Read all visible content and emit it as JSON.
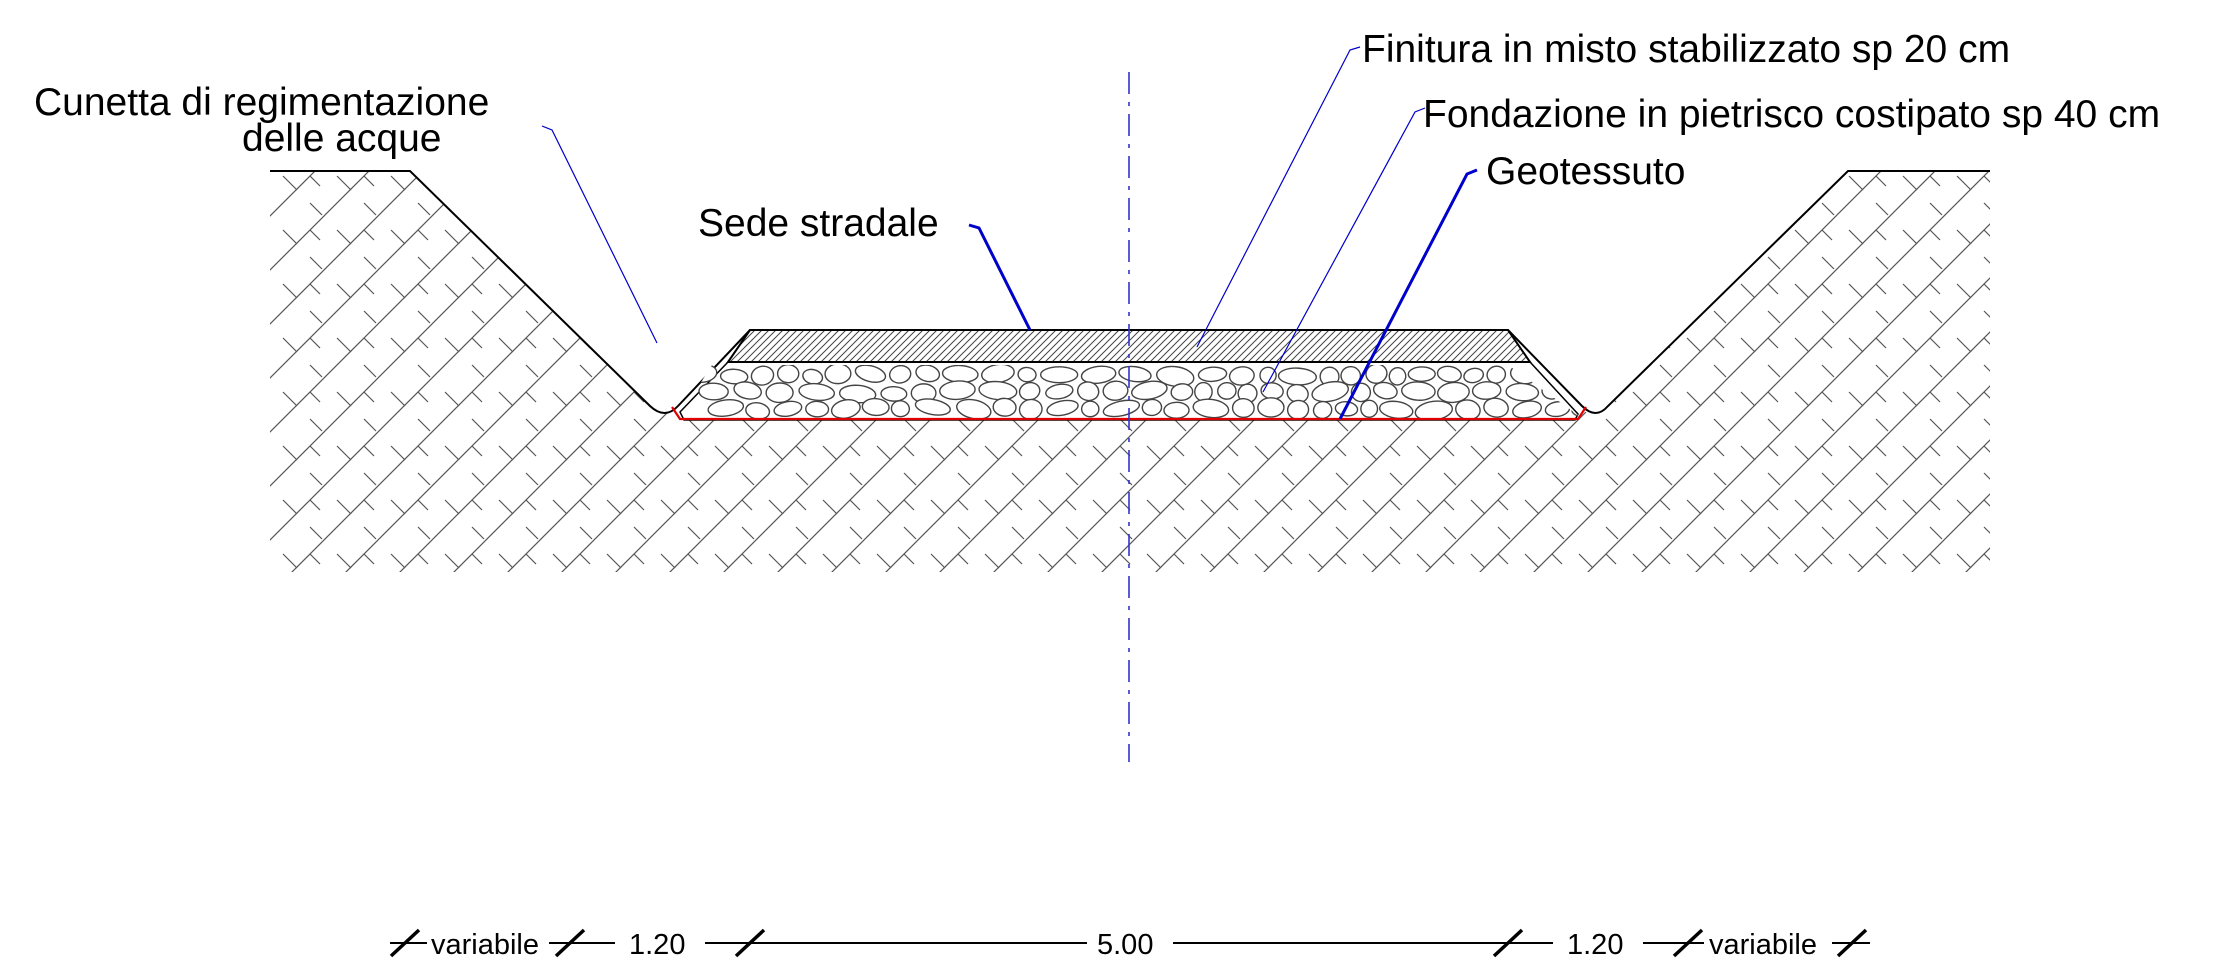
{
  "labels": {
    "cunetta_line1": "Cunetta di regimentazione",
    "cunetta_line2": "delle acque",
    "sede_stradale": "Sede stradale",
    "finitura": "Finitura in misto stabilizzato sp 20 cm",
    "fondazione": "Fondazione in pietrisco costipato sp 40 cm",
    "geotessuto": "Geotessuto"
  },
  "dimensions": [
    "variabile",
    "1.20",
    "5.00",
    "1.20",
    "variabile"
  ],
  "colors": {
    "leader": "#0000cc",
    "axis": "#3333cc",
    "geotextile": "#e00000",
    "hatch": "#555555"
  }
}
